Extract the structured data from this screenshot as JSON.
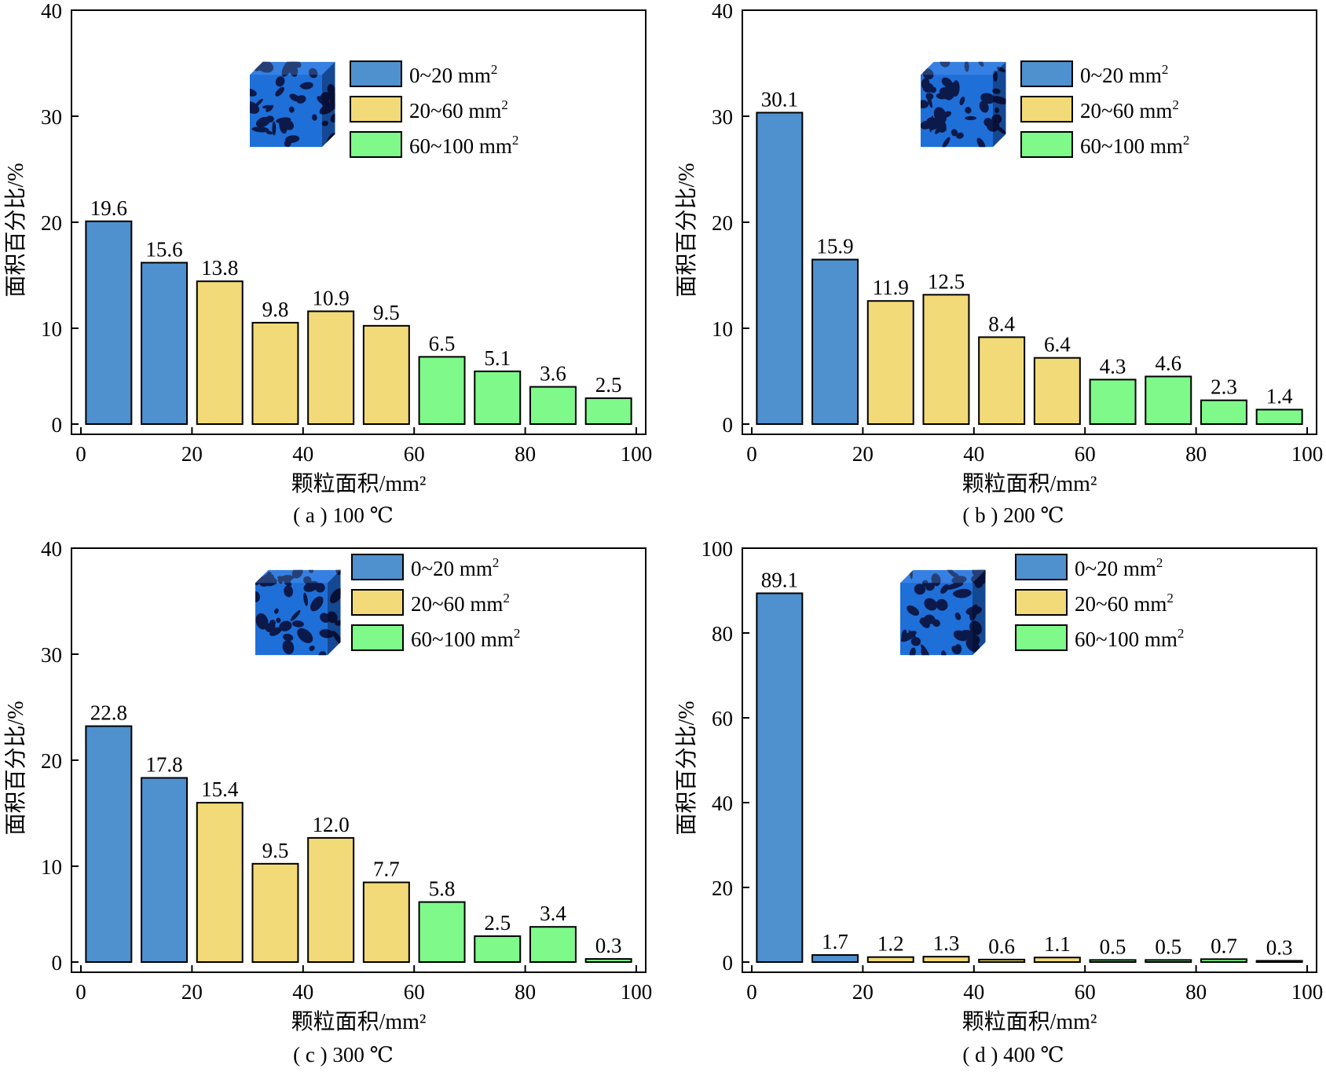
{
  "colors": {
    "blue": "#4f90cf",
    "yellow": "#f2da78",
    "green": "#7ef98a",
    "cube_dark": "#0b1a4a",
    "cube_light": "#1f6fd8"
  },
  "legend": [
    {
      "text": "0~20 mm",
      "sup": "2",
      "color": "blue"
    },
    {
      "text": "20~60 mm",
      "sup": "2",
      "color": "yellow"
    },
    {
      "text": "60~100 mm",
      "sup": "2",
      "color": "green"
    }
  ],
  "chart_data": [
    {
      "type": "bar",
      "caption": "( a ) 100 ℃",
      "xlabel": "颗粒面积/mm²",
      "ylabel": "面积百分比/%",
      "xlim": [
        0,
        100
      ],
      "ylim": [
        0,
        40
      ],
      "xticks": [
        0,
        20,
        40,
        60,
        80,
        100
      ],
      "yticks": [
        0,
        10,
        20,
        30,
        40
      ],
      "x": [
        5,
        15,
        25,
        35,
        45,
        55,
        65,
        75,
        85,
        95
      ],
      "values": [
        19.6,
        15.6,
        13.8,
        9.8,
        10.9,
        9.5,
        6.5,
        5.1,
        3.6,
        2.5
      ],
      "value_labels": [
        "19.6",
        "15.6",
        "13.8",
        "9.8",
        "10.9",
        "9.5",
        "6.5",
        "5.1",
        "3.6",
        "2.5"
      ],
      "groups": [
        "blue",
        "blue",
        "yellow",
        "yellow",
        "yellow",
        "yellow",
        "green",
        "green",
        "green",
        "green"
      ],
      "legend_position": "top-right",
      "grid": false
    },
    {
      "type": "bar",
      "caption": "( b ) 200 ℃",
      "xlabel": "颗粒面积/mm²",
      "ylabel": "面积百分比/%",
      "xlim": [
        0,
        100
      ],
      "ylim": [
        0,
        40
      ],
      "xticks": [
        0,
        20,
        40,
        60,
        80,
        100
      ],
      "yticks": [
        0,
        10,
        20,
        30,
        40
      ],
      "x": [
        5,
        15,
        25,
        35,
        45,
        55,
        65,
        75,
        85,
        95
      ],
      "values": [
        30.1,
        15.9,
        11.9,
        12.5,
        8.4,
        6.4,
        4.3,
        4.6,
        2.3,
        1.4
      ],
      "value_labels": [
        "30.1",
        "15.9",
        "11.9",
        "12.5",
        "8.4",
        "6.4",
        "4.3",
        "4.6",
        "2.3",
        "1.4"
      ],
      "groups": [
        "blue",
        "blue",
        "yellow",
        "yellow",
        "yellow",
        "yellow",
        "green",
        "green",
        "green",
        "green"
      ],
      "legend_position": "top-right",
      "grid": false
    },
    {
      "type": "bar",
      "caption": "( c ) 300 ℃",
      "xlabel": "颗粒面积/mm²",
      "ylabel": "面积百分比/%",
      "xlim": [
        0,
        100
      ],
      "ylim": [
        0,
        40
      ],
      "xticks": [
        0,
        20,
        40,
        60,
        80,
        100
      ],
      "yticks": [
        0,
        10,
        20,
        30,
        40
      ],
      "x": [
        5,
        15,
        25,
        35,
        45,
        55,
        65,
        75,
        85,
        95
      ],
      "values": [
        22.8,
        17.8,
        15.4,
        9.5,
        12.0,
        7.7,
        5.8,
        2.5,
        3.4,
        0.3
      ],
      "value_labels": [
        "22.8",
        "17.8",
        "15.4",
        "9.5",
        "12.0",
        "7.7",
        "5.8",
        "2.5",
        "3.4",
        "0.3"
      ],
      "groups": [
        "blue",
        "blue",
        "yellow",
        "yellow",
        "yellow",
        "yellow",
        "green",
        "green",
        "green",
        "green"
      ],
      "legend_position": "top-right",
      "grid": false
    },
    {
      "type": "bar",
      "caption": "( d ) 400 ℃",
      "xlabel": "颗粒面积/mm²",
      "ylabel": "面积百分比/%",
      "xlim": [
        0,
        100
      ],
      "ylim": [
        0,
        100
      ],
      "xticks": [
        0,
        20,
        40,
        60,
        80,
        100
      ],
      "yticks": [
        0,
        20,
        40,
        60,
        80,
        100
      ],
      "x": [
        5,
        15,
        25,
        35,
        45,
        55,
        65,
        75,
        85,
        95
      ],
      "values": [
        89.1,
        1.7,
        1.2,
        1.3,
        0.6,
        1.1,
        0.5,
        0.5,
        0.7,
        0.3
      ],
      "value_labels": [
        "89.1",
        "1.7",
        "1.2",
        "1.3",
        "0.6",
        "1.1",
        "0.5",
        "0.5",
        "0.7",
        "0.3"
      ],
      "groups": [
        "blue",
        "blue",
        "yellow",
        "yellow",
        "yellow",
        "yellow",
        "green",
        "green",
        "green",
        "green"
      ],
      "legend_position": "top-right",
      "grid": false
    }
  ]
}
